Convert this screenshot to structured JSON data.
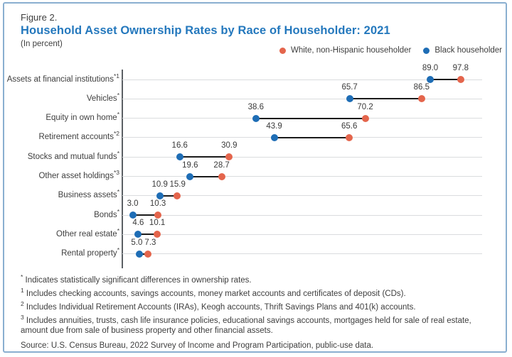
{
  "header": {
    "figure_label": "Figure 2.",
    "title": "Household Asset Ownership Rates by Race of Householder: 2021",
    "subtitle": "(In percent)"
  },
  "colors": {
    "title_accent": "#2478BD",
    "white_series": "#E4654C",
    "black_series": "#1E6DB5",
    "connector": "#1B1B1B"
  },
  "chart_data": {
    "type": "dumbbell",
    "title": "Household Asset Ownership Rates by Race of Householder: 2021",
    "units": "percent",
    "xlim": [
      0,
      104
    ],
    "grid": "horizontal per-category, no x-axis tick labels",
    "legend_position": "top-right",
    "categories": [
      "Assets at financial institutions*1",
      "Vehicles*",
      "Equity in own home*",
      "Retirement accounts*2",
      "Stocks and mutual funds*",
      "Other asset holdings*3",
      "Business assets*",
      "Bonds*",
      "Other real estate*",
      "Rental property*"
    ],
    "series": [
      {
        "name": "White, non-Hispanic householder",
        "color": "#E4654C",
        "values": [
          97.8,
          86.5,
          70.2,
          65.6,
          30.9,
          28.7,
          15.9,
          10.3,
          10.1,
          7.3
        ]
      },
      {
        "name": "Black householder",
        "color": "#1E6DB5",
        "values": [
          89.0,
          65.7,
          38.6,
          43.9,
          16.6,
          19.6,
          10.9,
          3.0,
          4.6,
          5.0
        ]
      }
    ]
  },
  "footnotes": [
    {
      "mark": "*",
      "text": "Indicates statistically significant differences in ownership rates."
    },
    {
      "mark": "1",
      "text": "Includes checking accounts, savings accounts, money market accounts and certificates of deposit (CDs)."
    },
    {
      "mark": "2",
      "text": "Includes Individual Retirement Accounts (IRAs), Keogh accounts, Thrift Savings Plans and 401(k) accounts."
    },
    {
      "mark": "3",
      "text": "Includes annuities, trusts, cash life insurance policies, educational savings accounts, mortgages held for sale of real estate, amount due from sale of business property and other financial assets."
    }
  ],
  "source": "Source: U.S. Census Bureau, 2022 Survey of Income and Program Participation, public-use data."
}
